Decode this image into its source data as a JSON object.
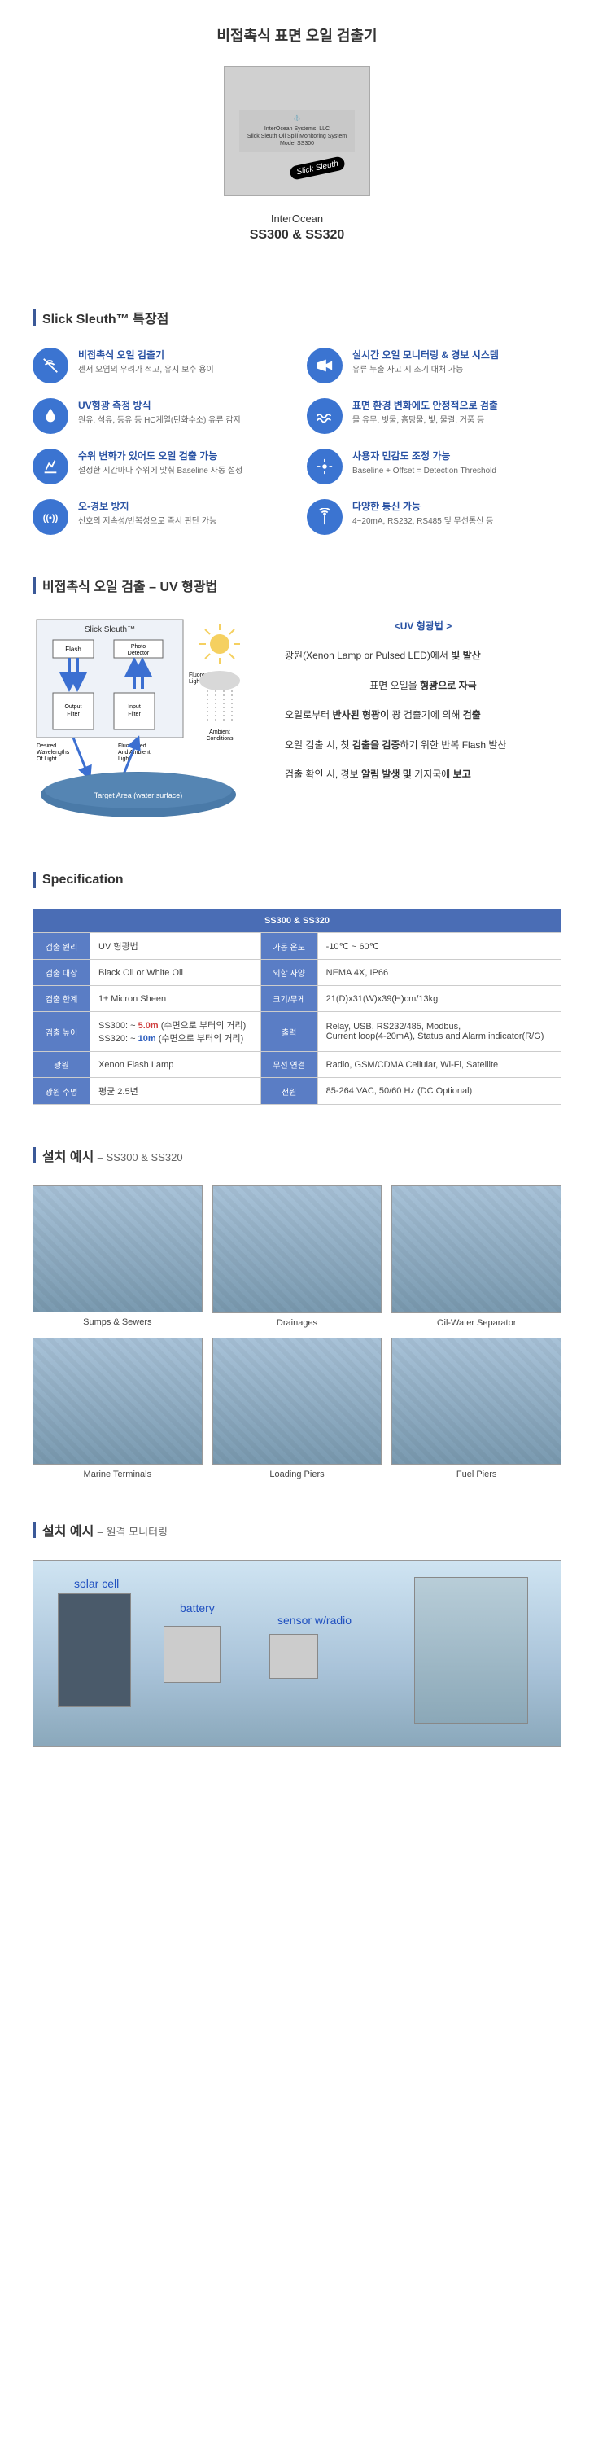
{
  "title": "비접촉식 표면 오일 검출기",
  "product_plate": {
    "company": "InterOcean Systems, LLC",
    "line1": "Slick Sleuth Oil Spill Monitoring System",
    "line2": "Model SS300",
    "sticker": "Slick Sleuth"
  },
  "brand": "InterOcean",
  "model": "SS300 & SS320",
  "sections": {
    "features": "Slick Sleuth™ 특장점",
    "uv": "비접촉식 오일 검출 – UV 형광법",
    "spec": "Specification",
    "install1_t": "설치 예시",
    "install1_s": "– SS300 & SS320",
    "install2_t": "설치 예시",
    "install2_s": "– 원격 모니터링"
  },
  "features": [
    {
      "icon": "nocontact",
      "t": "비접촉식 오일 검출기",
      "d": "센서 오염의 우려가 적고, 유지 보수 용이"
    },
    {
      "icon": "camera",
      "t": "실시간 오일 모니터링 & 경보 시스템",
      "d": "유류 누출 사고 시 조기 대처 가능"
    },
    {
      "icon": "drop",
      "t": "UV형광 측정 방식",
      "d": "원유, 석유, 등유 등 HC계열(탄화수소) 유류 감지"
    },
    {
      "icon": "wave",
      "t": "표면 환경 변화에도 안정적으로 검출",
      "d": "물 유무, 빗물, 흙탕물, 빛, 물결, 거품 등"
    },
    {
      "icon": "level",
      "t": "수위 변화가 있어도 오일 검출 가능",
      "d": "설정한 시간마다 수위에 맞춰 Baseline 자동 설정"
    },
    {
      "icon": "sens",
      "t": "사용자 민감도 조정 가능",
      "d": "Baseline + Offset = Detection Threshold"
    },
    {
      "icon": "alarm",
      "t": "오-경보 방지",
      "d": "신호의 지속성/반복성으로 즉시 판단 가능"
    },
    {
      "icon": "antenna",
      "t": "다양한 통신 가능",
      "d": "4~20mA, RS232, RS485 및 무선통신 등"
    }
  ],
  "uv_diag": {
    "title": "Slick Sleuth™",
    "flash": "Flash",
    "photo": "Photo Detector",
    "fluoresced": "Fluoresced Light",
    "ambient": "Ambient Conditions",
    "out_filter": "Output Filter",
    "in_filter": "Input Filter",
    "desired": "Desired Wavelengths Of Light",
    "fluo_amb": "Fluoresced And Ambient Light",
    "target": "Target Area (water surface)"
  },
  "uv_steps": {
    "hdr": "<UV 형광법 >",
    "s1a": "광원(Xenon Lamp or Pulsed LED)에서 ",
    "s1b": "빛 발산",
    "s2a": "표면 오일을 ",
    "s2b": "형광으로 자극",
    "s3a": "오일로부터 ",
    "s3b": "반사된 형광이",
    "s3c": " 광 검출기에 의해 ",
    "s3d": "검출",
    "s4a": "오일 검출 시, 첫 ",
    "s4b": "검출을 검증",
    "s4c": "하기 위한 반복 Flash 발산",
    "s5a": "검출 확인 시, 경보 ",
    "s5b": "알림 발생 및",
    "s5c": " 기지국에 ",
    "s5d": "보고"
  },
  "spec": {
    "hdr": "SS300 & SS320",
    "rows": [
      {
        "l1": "검출 원리",
        "v1": "UV 형광법",
        "l2": "가동 온도",
        "v2": "-10℃ ~ 60℃"
      },
      {
        "l1": "검출 대상",
        "v1": "Black Oil or White Oil",
        "l2": "외함 사양",
        "v2": "NEMA 4X, IP66"
      },
      {
        "l1": "검출 한계",
        "v1": "1± Micron Sheen",
        "l2": "크기/무게",
        "v2": "21(D)x31(W)x39(H)cm/13kg"
      },
      {
        "l1": "검출 높이",
        "v1_html": "SS300: ~ <span class='r'>5.0m</span> (수면으로 부터의 거리)<br>SS320: ~ <span class='b'>10m</span> (수면으로 부터의 거리)",
        "l2": "출력",
        "v2": "Relay, USB, RS232/485, Modbus,\nCurrent loop(4-20mA), Status and Alarm indicator(R/G)"
      },
      {
        "l1": "광원",
        "v1": "Xenon Flash Lamp",
        "l2": "무선 연결",
        "v2": "Radio, GSM/CDMA Cellular, Wi-Fi, Satellite"
      },
      {
        "l1": "광원 수명",
        "v1": "평균 2.5년",
        "l2": "전원",
        "v2": "85-264 VAC, 50/60 Hz (DC Optional)"
      }
    ]
  },
  "installs": [
    "Sumps & Sewers",
    "Drainages",
    "Oil-Water Separator",
    "Marine Terminals",
    "Loading Piers",
    "Fuel Piers"
  ],
  "remote": {
    "solar": "solar cell",
    "battery": "battery",
    "sensor": "sensor w/radio"
  },
  "colors": {
    "accent": "#3b5998",
    "icon_bg": "#3b74d1",
    "feat_title": "#2952a3",
    "tbl_hdr": "#4a6db5",
    "tbl_lbl": "#5a7dc5"
  }
}
